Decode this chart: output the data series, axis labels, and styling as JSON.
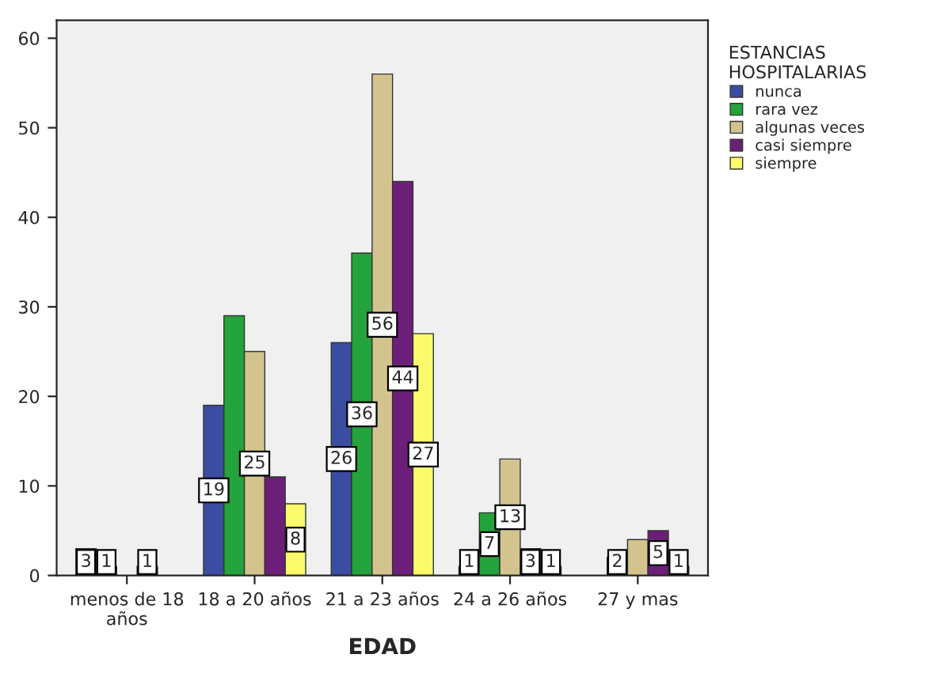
{
  "chart_data": {
    "type": "bar",
    "xlabel": "EDAD",
    "legend_title": "ESTANCIAS\nHOSPITALARIAS",
    "categories": [
      "menos de 18\naños",
      "18 a 20 años",
      "21 a 23 años",
      "24 a 26 años",
      "27 y mas"
    ],
    "series": [
      {
        "name": "nunca",
        "color": "#3a4da0",
        "values": [
          3,
          19,
          26,
          1,
          null
        ],
        "value_labels": [
          "3",
          "19",
          "26",
          "1",
          null
        ]
      },
      {
        "name": "rara vez",
        "color": "#23a33b",
        "values": [
          1,
          29,
          36,
          7,
          2
        ],
        "value_labels": [
          "1",
          null,
          "36",
          "7",
          "2"
        ]
      },
      {
        "name": "algunas veces",
        "color": "#d3c48f",
        "values": [
          null,
          25,
          56,
          13,
          4
        ],
        "value_labels": [
          null,
          "25",
          "56",
          "13",
          null
        ]
      },
      {
        "name": "casi siempre",
        "color": "#6c1f78",
        "values": [
          1,
          11,
          44,
          3,
          5
        ],
        "value_labels": [
          "1",
          null,
          "44",
          "3",
          "5"
        ]
      },
      {
        "name": "siempre",
        "color": "#fafa6a",
        "values": [
          null,
          8,
          27,
          1,
          1
        ],
        "value_labels": [
          null,
          "8",
          "27",
          "1",
          "1"
        ]
      }
    ],
    "ylim": [
      0,
      62
    ],
    "yticks": [
      0,
      10,
      20,
      30,
      40,
      50,
      60
    ],
    "grid": false,
    "legend": "right"
  }
}
